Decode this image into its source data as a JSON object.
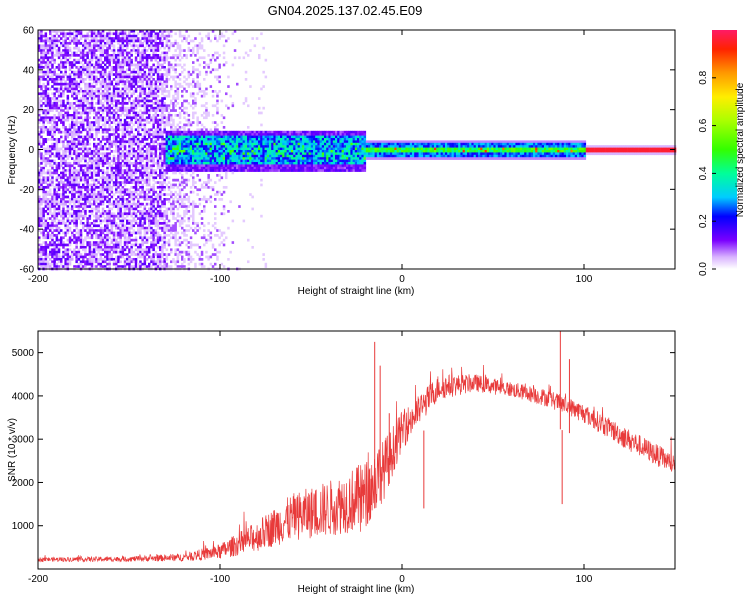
{
  "title": "GN04.2025.137.02.45.E09",
  "chart_data": [
    {
      "type": "heatmap",
      "xlabel": "Height of straight line (km)",
      "ylabel": "Frequency (Hz)",
      "xlim": [
        -200,
        150
      ],
      "ylim": [
        -60,
        60
      ],
      "x_ticks": [
        -200,
        -100,
        0,
        100
      ],
      "y_ticks": [
        -60,
        -40,
        -20,
        0,
        20,
        40,
        60
      ],
      "colorbar": {
        "label": "Normalized spectral amplitude",
        "range": [
          0,
          1
        ],
        "ticks": [
          0.0,
          0.2,
          0.4,
          0.6,
          0.8
        ]
      },
      "grid": false,
      "regions": [
        {
          "x": [
            -200,
            -130
          ],
          "freq": [
            -60,
            60
          ],
          "amplitude": 0.1,
          "description": "broadband scatter"
        },
        {
          "x": [
            -130,
            -20
          ],
          "freq": [
            -10,
            8
          ],
          "amplitude": 0.3
        },
        {
          "x": [
            -20,
            100
          ],
          "freq": [
            -4,
            4
          ],
          "amplitude": 0.4
        },
        {
          "x": [
            100,
            150
          ],
          "freq": [
            -1.5,
            1.5
          ],
          "amplitude": 0.95
        }
      ]
    },
    {
      "type": "line",
      "xlabel": "Height of straight line (km)",
      "ylabel": "SNR (10 * v/v)",
      "xlim": [
        -200,
        150
      ],
      "ylim": [
        0,
        5500
      ],
      "x_ticks": [
        -200,
        -100,
        0,
        100
      ],
      "y_ticks": [
        1000,
        2000,
        3000,
        4000,
        5000
      ],
      "grid": false,
      "series": [
        {
          "color": "#e83a3a",
          "envelope": {
            "x": [
              -200,
              -150,
              -120,
              -100,
              -80,
              -60,
              -40,
              -20,
              -10,
              0,
              10,
              20,
              40,
              60,
              80,
              100,
              120,
              150
            ],
            "y": [
              220,
              230,
              270,
              400,
              750,
              1200,
              1400,
              1700,
              2300,
              3200,
              3700,
              4200,
              4300,
              4150,
              3950,
              3600,
              3100,
              2400
            ],
            "noise": [
              50,
              60,
              90,
              180,
              350,
              550,
              650,
              800,
              700,
              450,
              350,
              300,
              200,
              180,
              200,
              230,
              250,
              250
            ]
          },
          "spikes": [
            {
              "x": -15,
              "y": 5250
            },
            {
              "x": -12,
              "y": 4700
            },
            {
              "x": -7,
              "y": 3600
            },
            {
              "x": 12,
              "y": 1400
            },
            {
              "x": 87,
              "y": 5550
            },
            {
              "x": 88,
              "y": 1500
            },
            {
              "x": 92,
              "y": 4850
            }
          ]
        }
      ]
    }
  ]
}
